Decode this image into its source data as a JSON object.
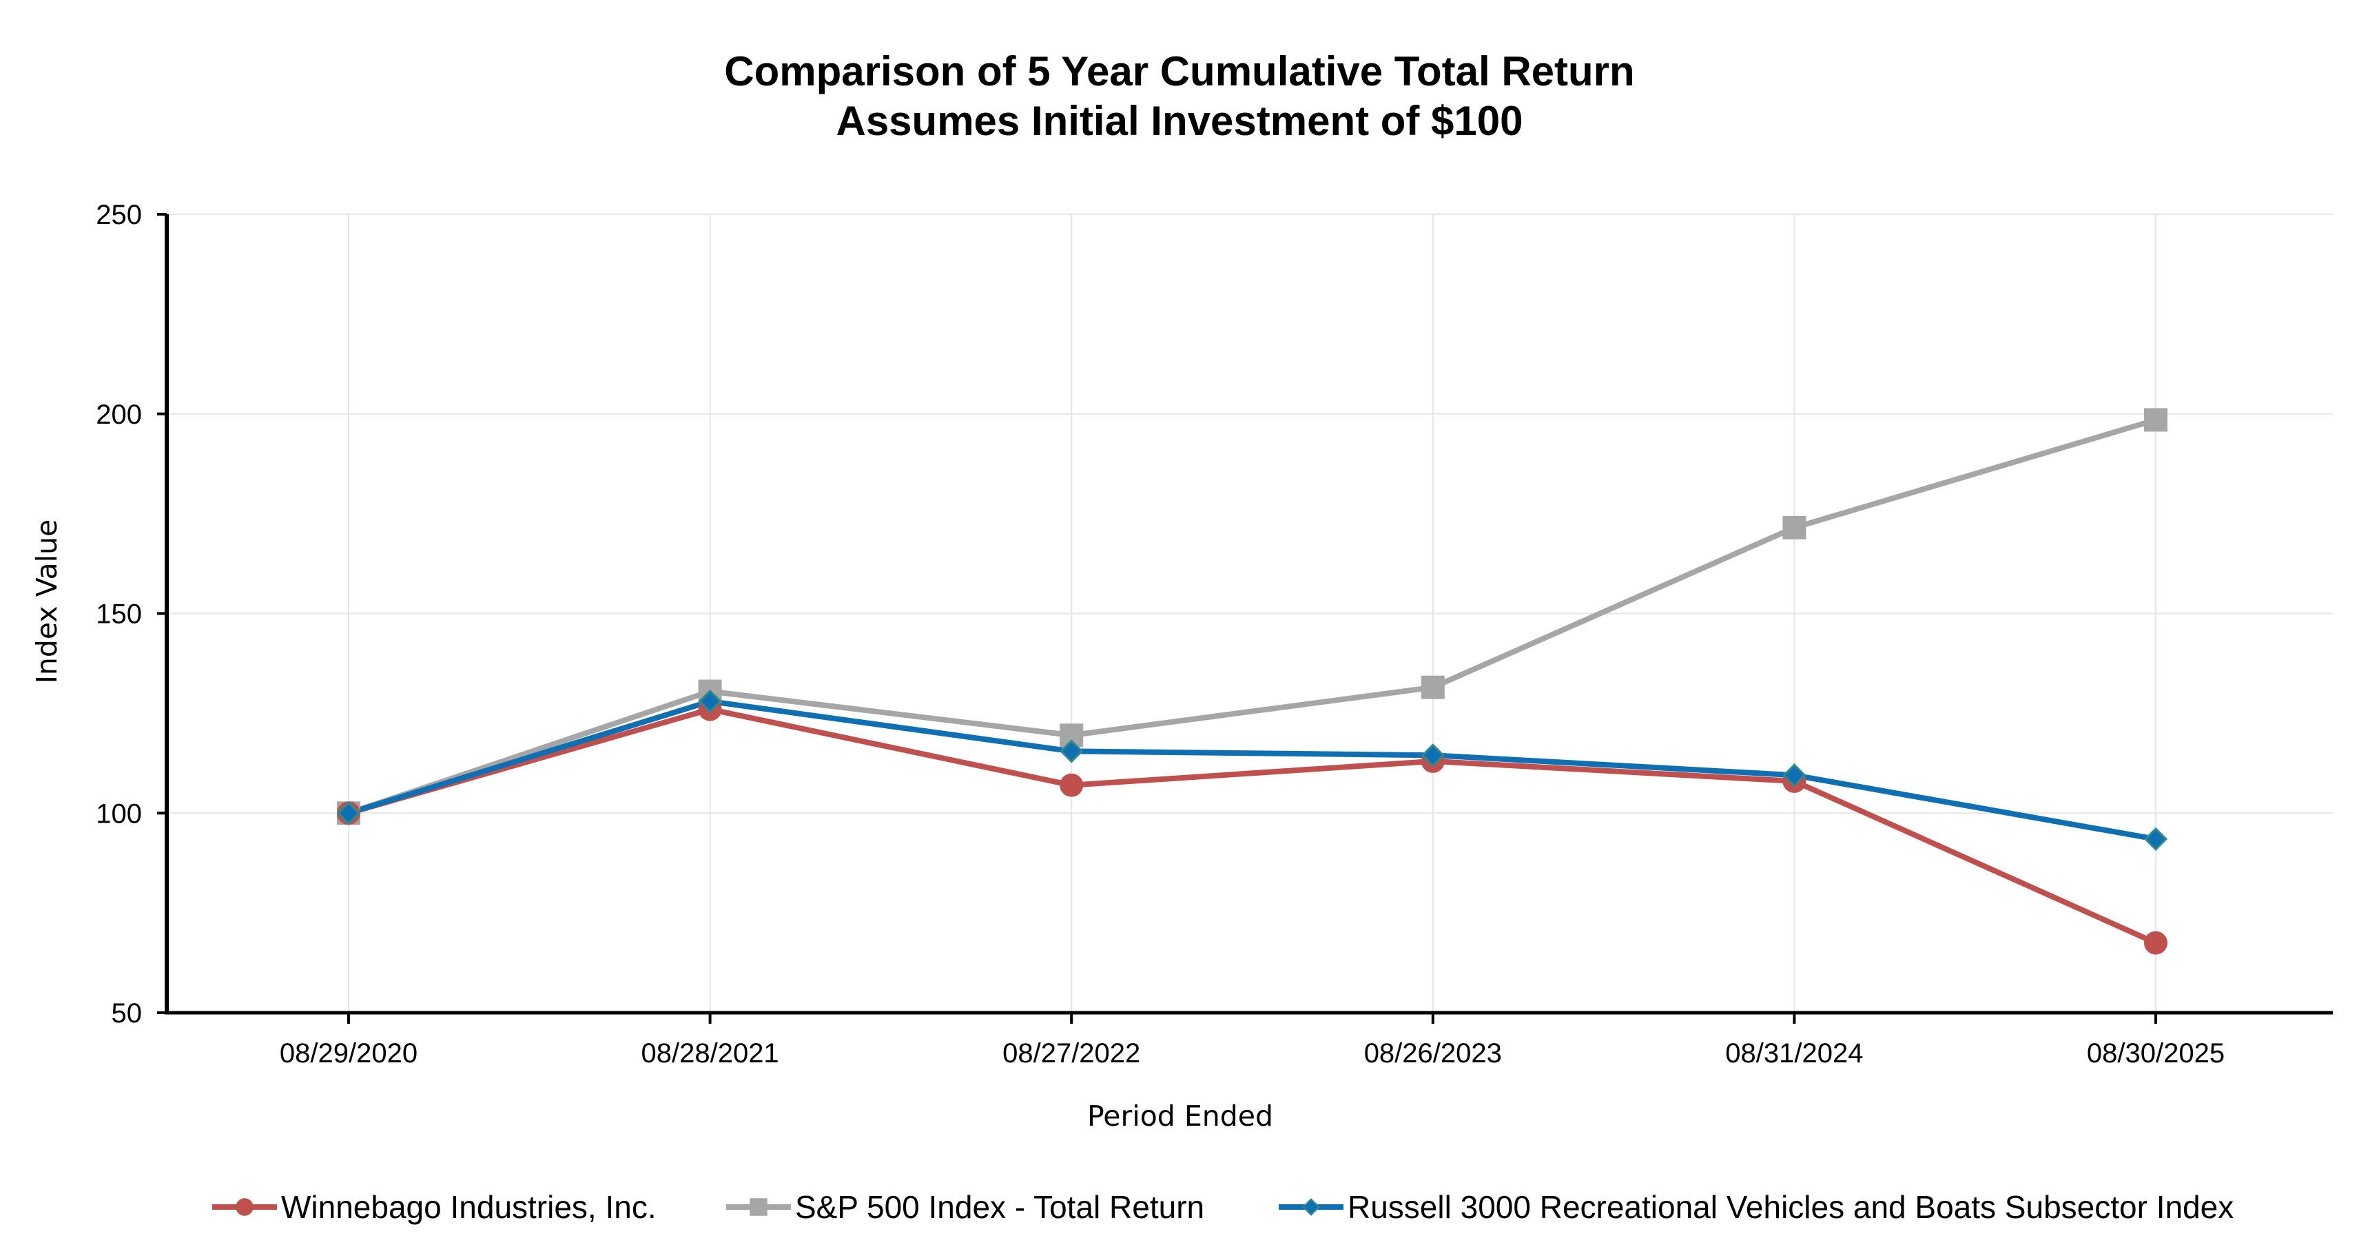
{
  "chart_data": {
    "type": "line",
    "title": "Comparison of 5 Year Cumulative Total Return",
    "subtitle": "Assumes Initial Investment of $100",
    "xlabel": "Period Ended",
    "ylabel": "Index Value",
    "categories": [
      "08/29/2020",
      "08/28/2021",
      "08/27/2022",
      "08/26/2023",
      "08/31/2024",
      "08/30/2025"
    ],
    "ylim": [
      50,
      250
    ],
    "yticks": [
      50,
      100,
      150,
      200,
      250
    ],
    "grid": true,
    "legend_position": "bottom",
    "series": [
      {
        "name": "Winnebago Industries, Inc.",
        "values": [
          100,
          126,
          107,
          113,
          108,
          67.5
        ],
        "color": "#c0504d",
        "marker": "circle"
      },
      {
        "name": "S&P 500 Index - Total Return",
        "values": [
          100,
          130.5,
          119.5,
          131.5,
          171.5,
          198.5
        ],
        "color": "#a6a6a6",
        "marker": "square"
      },
      {
        "name": "Russell 3000 Recreational Vehicles and Boats Subsector Index",
        "values": [
          100,
          128,
          115.5,
          114.5,
          109.5,
          93.5
        ],
        "color": "#0f6fb3",
        "marker": "diamond"
      }
    ]
  }
}
